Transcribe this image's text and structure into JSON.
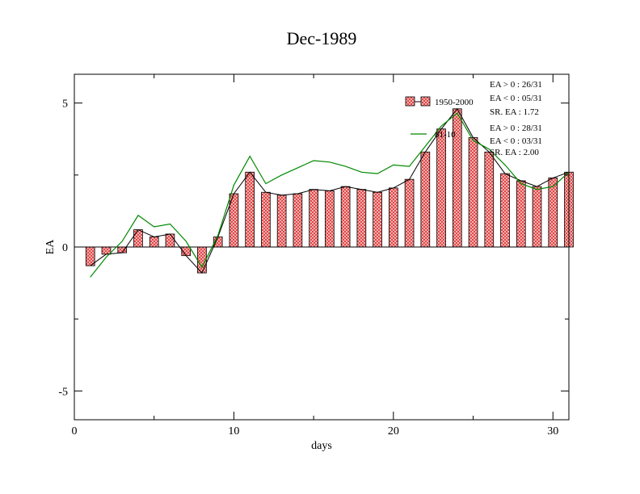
{
  "chart_data": {
    "type": "bar",
    "title": "Dec-1989",
    "xlabel": "days",
    "ylabel": "EA",
    "xlim": [
      0,
      31
    ],
    "ylim": [
      -6,
      6
    ],
    "xticks": [
      0,
      10,
      20,
      30
    ],
    "yticks": [
      -5,
      0,
      5
    ],
    "grid": false,
    "legend_position": "top-right",
    "x": [
      1,
      2,
      3,
      4,
      5,
      6,
      7,
      8,
      9,
      10,
      11,
      12,
      13,
      14,
      15,
      16,
      17,
      18,
      19,
      20,
      21,
      22,
      23,
      24,
      25,
      26,
      27,
      28,
      29,
      30,
      31
    ],
    "series": [
      {
        "name": "1950-2000",
        "kind": "bar",
        "color": "#e66666",
        "values": [
          -0.65,
          -0.25,
          -0.2,
          0.6,
          0.35,
          0.45,
          -0.3,
          -0.9,
          0.35,
          1.85,
          2.6,
          1.9,
          1.8,
          1.85,
          2.0,
          1.95,
          2.1,
          2.0,
          1.9,
          2.05,
          2.35,
          3.3,
          4.1,
          4.8,
          3.8,
          3.3,
          2.55,
          2.3,
          2.1,
          2.4,
          2.6
        ]
      },
      {
        "name": "81-10",
        "kind": "line",
        "color": "#008800",
        "values": [
          -1.05,
          -0.35,
          0.2,
          1.1,
          0.7,
          0.8,
          0.2,
          -0.7,
          0.4,
          2.15,
          3.15,
          2.2,
          2.5,
          2.75,
          3.0,
          2.95,
          2.8,
          2.6,
          2.55,
          2.85,
          2.8,
          3.5,
          4.2,
          4.65,
          3.7,
          3.4,
          2.85,
          2.2,
          2.0,
          2.1,
          2.6
        ]
      }
    ],
    "bar_outline_line": {
      "color": "#000000",
      "values": [
        -0.65,
        -0.25,
        -0.2,
        0.6,
        0.35,
        0.45,
        -0.3,
        -0.9,
        0.35,
        1.85,
        2.6,
        1.9,
        1.8,
        1.85,
        2.0,
        1.95,
        2.1,
        2.0,
        1.9,
        2.05,
        2.35,
        3.3,
        4.1,
        4.8,
        3.8,
        3.3,
        2.55,
        2.3,
        2.1,
        2.4,
        2.6
      ]
    },
    "annotations": {
      "group1": [
        "EA > 0 : 26/31",
        "EA < 0 : 05/31",
        "SR. EA :  1.72"
      ],
      "group2": [
        "EA > 0 : 28/31",
        "EA < 0 : 03/31",
        "SR. EA :  2.00"
      ]
    }
  }
}
